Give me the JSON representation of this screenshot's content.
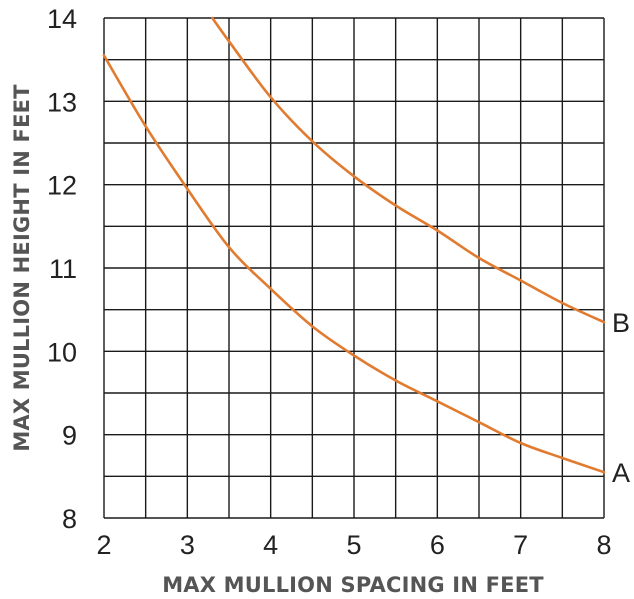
{
  "chart_data": {
    "type": "line",
    "xlabel": "MAX MULLION SPACING IN FEET",
    "ylabel": "MAX MULLION HEIGHT IN FEET",
    "xlim": [
      2,
      8
    ],
    "ylim": [
      8,
      14
    ],
    "x_ticks": [
      "2",
      "3",
      "4",
      "5",
      "6",
      "7",
      "8"
    ],
    "y_ticks": [
      "8",
      "9",
      "10",
      "11",
      "12",
      "13",
      "14"
    ],
    "x_minor_step": 0.5,
    "y_minor_step": 0.5,
    "grid": true,
    "line_color": "#e07b30",
    "series": [
      {
        "name": "A",
        "x": [
          2.0,
          2.5,
          3.0,
          3.5,
          4.0,
          4.5,
          5.0,
          5.5,
          6.0,
          6.5,
          7.0,
          7.5,
          8.0
        ],
        "y": [
          13.55,
          12.7,
          11.95,
          11.25,
          10.75,
          10.3,
          9.95,
          9.65,
          9.4,
          9.15,
          8.9,
          8.72,
          8.55
        ]
      },
      {
        "name": "B",
        "x": [
          3.3,
          3.5,
          4.0,
          4.5,
          5.0,
          5.5,
          6.0,
          6.5,
          7.0,
          7.5,
          8.0
        ],
        "y": [
          14.0,
          13.72,
          13.05,
          12.52,
          12.1,
          11.75,
          11.45,
          11.12,
          10.85,
          10.58,
          10.35
        ]
      }
    ]
  }
}
